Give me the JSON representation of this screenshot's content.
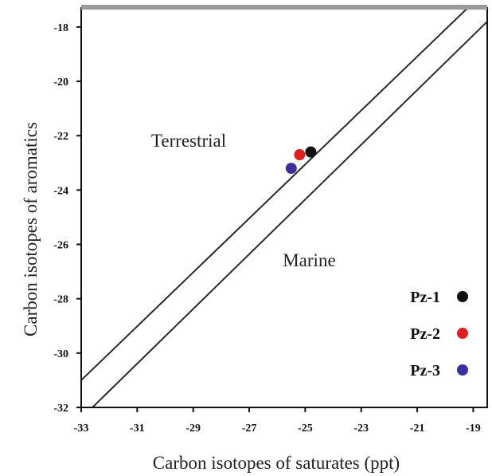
{
  "chart_data": {
    "type": "scatter",
    "xlabel": "Carbon isotopes of saturates (ppt)",
    "ylabel": "Carbon isotopes of aromatics",
    "xlim": [
      -33,
      -18.5
    ],
    "ylim": [
      -32,
      -17.3
    ],
    "x_ticks": [
      -33,
      -31,
      -29,
      -27,
      -25,
      -23,
      -21,
      -19
    ],
    "y_ticks": [
      -18,
      -20,
      -22,
      -24,
      -26,
      -28,
      -30,
      -32
    ],
    "grid": false,
    "series": [
      {
        "name": "Pz-1",
        "color": "#111111",
        "points": [
          [
            -24.8,
            -22.6
          ]
        ]
      },
      {
        "name": "Pz-2",
        "color": "#e02020",
        "points": [
          [
            -25.2,
            -22.7
          ]
        ]
      },
      {
        "name": "Pz-3",
        "color": "#3a2fa0",
        "points": [
          [
            -25.5,
            -23.2
          ]
        ]
      }
    ],
    "lines": [
      {
        "x": [
          -33,
          -19.2
        ],
        "y": [
          -31,
          -17.3
        ]
      },
      {
        "x": [
          -32.6,
          -18.5
        ],
        "y": [
          -32,
          -17.8
        ]
      }
    ],
    "annotations": [
      {
        "text": "Terrestrial",
        "x": -30.5,
        "y": -22.4
      },
      {
        "text": "Marine",
        "x": -25.8,
        "y": -26.8
      }
    ],
    "legend_position": "bottom-right"
  }
}
